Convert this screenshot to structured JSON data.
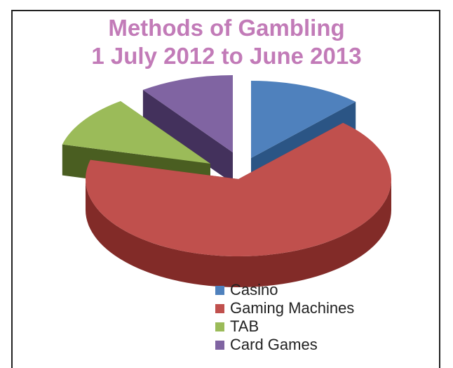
{
  "chart_data": {
    "type": "pie",
    "title": "Methods of Gambling",
    "subtitle": "1 July 2012 to June 2013",
    "categories": [
      "Casino",
      "Gaming Machines",
      "TAB",
      "Card Games"
    ],
    "values": [
      12,
      67,
      11,
      10
    ],
    "colors": [
      "#4f81bd",
      "#c0504d",
      "#9bbb59",
      "#8064a2"
    ],
    "side_colors": [
      "#2b5585",
      "#822b28",
      "#4a5e21",
      "#43315c"
    ],
    "style": "3d-exploded",
    "legend_position": "bottom-right"
  }
}
